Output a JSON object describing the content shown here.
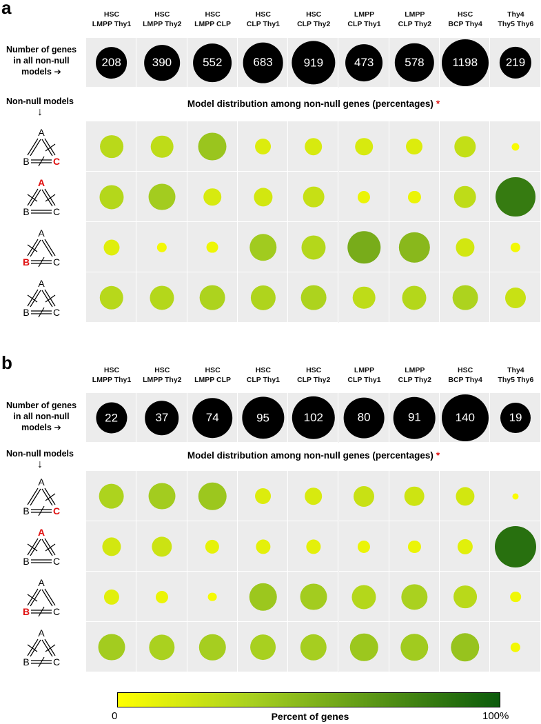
{
  "colors": {
    "scale_low": "#ffff00",
    "scale_mid": "#a8d020",
    "scale_high": "#0b5a0b",
    "count_bubble": "#000000",
    "highlight_red": "#e01010",
    "cell_bg": "#ececec"
  },
  "panels": [
    {
      "letter": "a",
      "count_label": [
        "Number of genes",
        "in all non-null",
        "models ➔"
      ],
      "nonnull_label": [
        "Non-null models",
        "↓"
      ],
      "dist_title": "Model distribution among non-null genes (percentages)",
      "dist_star": "*",
      "columns": [
        [
          "HSC",
          "LMPP Thy1"
        ],
        [
          "HSC",
          "LMPP Thy2"
        ],
        [
          "HSC",
          "LMPP CLP"
        ],
        [
          "HSC",
          "CLP  Thy1"
        ],
        [
          "HSC",
          "CLP  Thy2"
        ],
        [
          "LMPP",
          "CLP  Thy1"
        ],
        [
          "LMPP",
          "CLP Thy2"
        ],
        [
          "HSC",
          "BCP  Thy4"
        ],
        [
          "Thy4",
          "Thy5  Thy6"
        ]
      ],
      "models": [
        {
          "top": "A",
          "left": "B",
          "right": "C",
          "red": "C"
        },
        {
          "top": "A",
          "left": "B",
          "right": "C",
          "red": "A"
        },
        {
          "top": "A",
          "left": "B",
          "right": "C",
          "red": "B"
        },
        {
          "top": "A",
          "left": "B",
          "right": "C",
          "red": ""
        }
      ]
    },
    {
      "letter": "b",
      "count_label": [
        "Number of genes",
        "in all non-null",
        "models ➔"
      ],
      "nonnull_label": [
        "Non-null models",
        "↓"
      ],
      "dist_title": "Model distribution among non-null genes (percentages)",
      "dist_star": "*",
      "columns": [
        [
          "HSC",
          "LMPP Thy1"
        ],
        [
          "HSC",
          "LMPP Thy2"
        ],
        [
          "HSC",
          "LMPP CLP"
        ],
        [
          "HSC",
          "CLP  Thy1"
        ],
        [
          "HSC",
          "CLP  Thy2"
        ],
        [
          "LMPP",
          "CLP  Thy1"
        ],
        [
          "LMPP",
          "CLP Thy2"
        ],
        [
          "HSC",
          "BCP  Thy4"
        ],
        [
          "Thy4",
          "Thy5  Thy6"
        ]
      ],
      "models": [
        {
          "top": "A",
          "left": "B",
          "right": "C",
          "red": "C"
        },
        {
          "top": "A",
          "left": "B",
          "right": "C",
          "red": "A"
        },
        {
          "top": "A",
          "left": "B",
          "right": "C",
          "red": "B"
        },
        {
          "top": "A",
          "left": "B",
          "right": "C",
          "red": ""
        }
      ]
    }
  ],
  "colorbar": {
    "min_label": "0",
    "max_label": "100%",
    "title": "Percent of genes"
  },
  "chart_data": [
    {
      "type": "heatmap",
      "panel": "a",
      "categories": [
        "HSC LMPP Thy1",
        "HSC LMPP Thy2",
        "HSC LMPP CLP",
        "HSC CLP Thy1",
        "HSC CLP Thy2",
        "LMPP CLP Thy1",
        "LMPP CLP Thy2",
        "HSC BCP Thy4",
        "Thy4 Thy5 Thy6"
      ],
      "gene_counts": [
        208,
        390,
        552,
        683,
        919,
        473,
        578,
        1198,
        219
      ],
      "series": [
        {
          "values": [
            28,
            26,
            41,
            14,
            16,
            16,
            14,
            24,
            3
          ]
        },
        {
          "values": [
            30,
            37,
            16,
            18,
            23,
            8,
            8,
            26,
            82
          ]
        },
        {
          "values": [
            13,
            5,
            7,
            38,
            30,
            55,
            48,
            18,
            5
          ]
        },
        {
          "values": [
            29,
            30,
            33,
            32,
            33,
            26,
            30,
            33,
            22
          ]
        }
      ],
      "value_range": [
        0,
        100
      ]
    },
    {
      "type": "heatmap",
      "panel": "b",
      "categories": [
        "HSC LMPP Thy1",
        "HSC LMPP Thy2",
        "HSC LMPP CLP",
        "HSC CLP Thy1",
        "HSC CLP Thy2",
        "LMPP CLP Thy1",
        "LMPP CLP Thy2",
        "HSC BCP Thy4",
        "Thy4 Thy5 Thy6"
      ],
      "gene_counts": [
        22,
        37,
        74,
        95,
        102,
        80,
        91,
        140,
        19
      ],
      "series": [
        {
          "values": [
            33,
            37,
            40,
            14,
            16,
            22,
            20,
            18,
            2
          ]
        },
        {
          "values": [
            18,
            21,
            10,
            11,
            11,
            8,
            8,
            12,
            88
          ]
        },
        {
          "values": [
            12,
            8,
            4,
            40,
            37,
            30,
            34,
            28,
            6
          ]
        },
        {
          "values": [
            37,
            34,
            36,
            35,
            36,
            40,
            38,
            42,
            5
          ]
        }
      ],
      "value_range": [
        0,
        100
      ]
    }
  ]
}
